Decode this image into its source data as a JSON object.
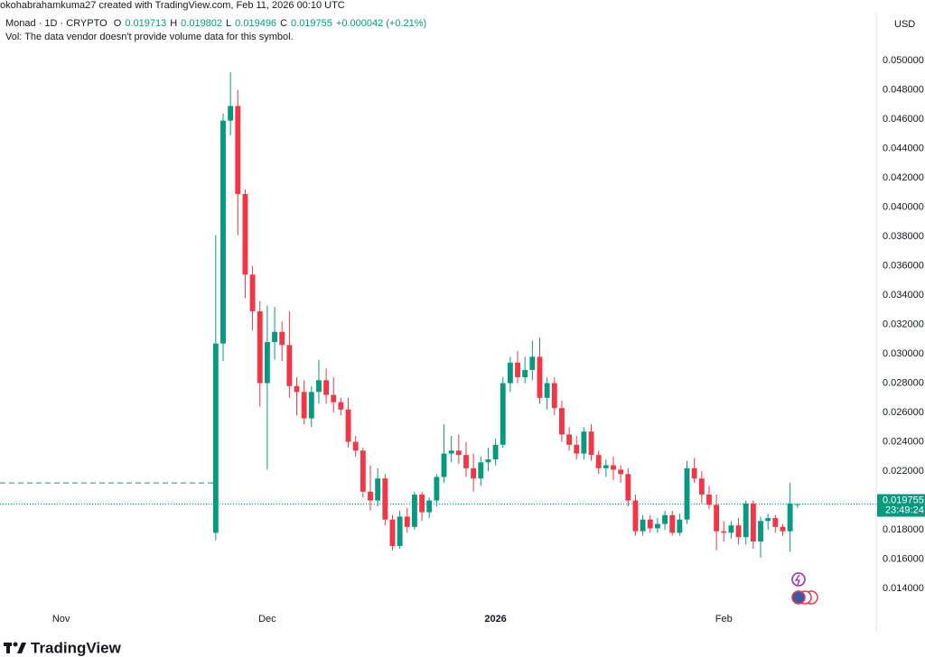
{
  "header": {
    "credit": "okohabrahamkuma27 created with TradingView.com, Feb 11, 2026 00:10 UTC",
    "symbol": "Monad · 1D · CRYPTO",
    "ohlc": [
      {
        "label": "O",
        "value": "0.019713"
      },
      {
        "label": "H",
        "value": "0.019802"
      },
      {
        "label": "L",
        "value": "0.019496"
      },
      {
        "label": "C",
        "value": "0.019755"
      }
    ],
    "change": "+0.000042 (+0.21%)",
    "volume_note": "Vol: The data vendor doesn't provide volume data for this symbol.",
    "currency": "USD"
  },
  "footer": {
    "logo": "TradingView"
  },
  "chart_data": {
    "type": "candlestick",
    "up_color": "#089981",
    "down_color": "#f23645",
    "open": [
      0.0178,
      0.0307,
      0.0459,
      0.0469,
      0.0409,
      0.0354,
      0.0329,
      0.028,
      0.0308,
      0.0315,
      0.0306,
      0.0278,
      0.0274,
      0.0256,
      0.0274,
      0.0282,
      0.0272,
      0.0267,
      0.0262,
      0.024,
      0.0234,
      0.0206,
      0.02,
      0.0215,
      0.0187,
      0.0169,
      0.0189,
      0.0182,
      0.0204,
      0.0192,
      0.02,
      0.0216,
      0.0232,
      0.0234,
      0.0231,
      0.0222,
      0.0215,
      0.0226,
      0.0228,
      0.0238,
      0.028,
      0.0294,
      0.0284,
      0.0289,
      0.0298,
      0.027,
      0.028,
      0.0263,
      0.0245,
      0.0238,
      0.0232,
      0.0247,
      0.0231,
      0.0222,
      0.0224,
      0.0221,
      0.0218,
      0.02,
      0.0179,
      0.0187,
      0.0181,
      0.0184,
      0.019,
      0.0178,
      0.0187,
      0.0222,
      0.0215,
      0.0204,
      0.0197,
      0.0179,
      0.0178,
      0.0183,
      0.0175,
      0.0198,
      0.0172,
      0.0186,
      0.0188,
      0.0182,
      0.0179,
      0.019713
    ],
    "high": [
      0.0381,
      0.0464,
      0.0492,
      0.048,
      0.0412,
      0.036,
      0.0336,
      0.0333,
      0.0332,
      0.0322,
      0.0329,
      0.0284,
      0.0282,
      0.0278,
      0.0296,
      0.029,
      0.0284,
      0.027,
      0.027,
      0.0244,
      0.0236,
      0.0224,
      0.0222,
      0.0218,
      0.019,
      0.0193,
      0.0195,
      0.0206,
      0.0206,
      0.0202,
      0.0218,
      0.0252,
      0.0244,
      0.0245,
      0.024,
      0.0232,
      0.023,
      0.0236,
      0.0242,
      0.0284,
      0.0298,
      0.0302,
      0.0298,
      0.0309,
      0.0311,
      0.0284,
      0.0284,
      0.0268,
      0.025,
      0.0244,
      0.025,
      0.0252,
      0.0234,
      0.0228,
      0.023,
      0.0224,
      0.0222,
      0.0204,
      0.019,
      0.019,
      0.0188,
      0.0193,
      0.0193,
      0.0191,
      0.0227,
      0.0229,
      0.022,
      0.021,
      0.0204,
      0.0186,
      0.0186,
      0.0188,
      0.02,
      0.02,
      0.0189,
      0.0191,
      0.019,
      0.0184,
      0.0212,
      0.019802
    ],
    "low": [
      0.0173,
      0.0295,
      0.0449,
      0.0381,
      0.0338,
      0.0316,
      0.0264,
      0.0221,
      0.0296,
      0.0295,
      0.027,
      0.0258,
      0.0252,
      0.025,
      0.0266,
      0.0266,
      0.026,
      0.0258,
      0.0236,
      0.023,
      0.0202,
      0.0193,
      0.0196,
      0.0183,
      0.0166,
      0.0167,
      0.0178,
      0.018,
      0.0186,
      0.0188,
      0.0196,
      0.0212,
      0.0226,
      0.0225,
      0.0216,
      0.0206,
      0.021,
      0.022,
      0.0224,
      0.0236,
      0.0274,
      0.028,
      0.028,
      0.0282,
      0.0266,
      0.0262,
      0.0258,
      0.024,
      0.0234,
      0.0228,
      0.0228,
      0.0227,
      0.0218,
      0.0216,
      0.0214,
      0.0212,
      0.0196,
      0.0176,
      0.0176,
      0.0178,
      0.0178,
      0.018,
      0.0176,
      0.0176,
      0.0184,
      0.0212,
      0.0198,
      0.0194,
      0.0166,
      0.0172,
      0.0174,
      0.017,
      0.017,
      0.0167,
      0.0161,
      0.018,
      0.0178,
      0.0176,
      0.0165,
      0.019496
    ],
    "close": [
      0.0307,
      0.0459,
      0.0469,
      0.0409,
      0.0354,
      0.0329,
      0.028,
      0.0308,
      0.0315,
      0.0306,
      0.0278,
      0.0274,
      0.0256,
      0.0274,
      0.0282,
      0.0272,
      0.0267,
      0.0262,
      0.024,
      0.0234,
      0.0206,
      0.02,
      0.0215,
      0.0187,
      0.0169,
      0.0189,
      0.0182,
      0.0204,
      0.0192,
      0.02,
      0.0216,
      0.0232,
      0.0234,
      0.0231,
      0.0222,
      0.0215,
      0.0226,
      0.0228,
      0.0238,
      0.028,
      0.0294,
      0.0284,
      0.0289,
      0.0298,
      0.027,
      0.028,
      0.0263,
      0.0245,
      0.0238,
      0.0232,
      0.0247,
      0.0231,
      0.0222,
      0.0224,
      0.0221,
      0.0218,
      0.02,
      0.0179,
      0.0187,
      0.0181,
      0.0184,
      0.019,
      0.0178,
      0.0187,
      0.0222,
      0.0215,
      0.0204,
      0.0197,
      0.0179,
      0.0178,
      0.0183,
      0.0175,
      0.0198,
      0.0172,
      0.0186,
      0.0188,
      0.0182,
      0.0179,
      0.0198,
      0.019755
    ],
    "xlim": [
      -29.3,
      89.7
    ],
    "xticks": [
      {
        "value": -21,
        "label": "Nov"
      },
      {
        "value": 7,
        "label": "Dec"
      },
      {
        "value": 38,
        "label": "2026"
      },
      {
        "value": 69,
        "label": "Feb"
      }
    ],
    "ylim": [
      0.01105,
      0.05105
    ],
    "yticks": [
      {
        "value": 0.014,
        "label": "0.014000"
      },
      {
        "value": 0.016,
        "label": "0.016000"
      },
      {
        "value": 0.018,
        "label": "0.018000"
      },
      {
        "value": 0.02,
        "label": "0.020000"
      },
      {
        "value": 0.022,
        "label": "0.022000"
      },
      {
        "value": 0.024,
        "label": "0.024000"
      },
      {
        "value": 0.026,
        "label": "0.026000"
      },
      {
        "value": 0.028,
        "label": "0.028000"
      },
      {
        "value": 0.03,
        "label": "0.030000"
      },
      {
        "value": 0.032,
        "label": "0.032000"
      },
      {
        "value": 0.034,
        "label": "0.034000"
      },
      {
        "value": 0.036,
        "label": "0.036000"
      },
      {
        "value": 0.038,
        "label": "0.038000"
      },
      {
        "value": 0.04,
        "label": "0.040000"
      },
      {
        "value": 0.042,
        "label": "0.042000"
      },
      {
        "value": 0.044,
        "label": "0.044000"
      },
      {
        "value": 0.046,
        "label": "0.046000"
      },
      {
        "value": 0.048,
        "label": "0.048000"
      },
      {
        "value": 0.05,
        "label": "0.050000"
      }
    ],
    "dashed_level": 0.0212,
    "last_price": 0.019755,
    "countdown": "23:49:24"
  }
}
